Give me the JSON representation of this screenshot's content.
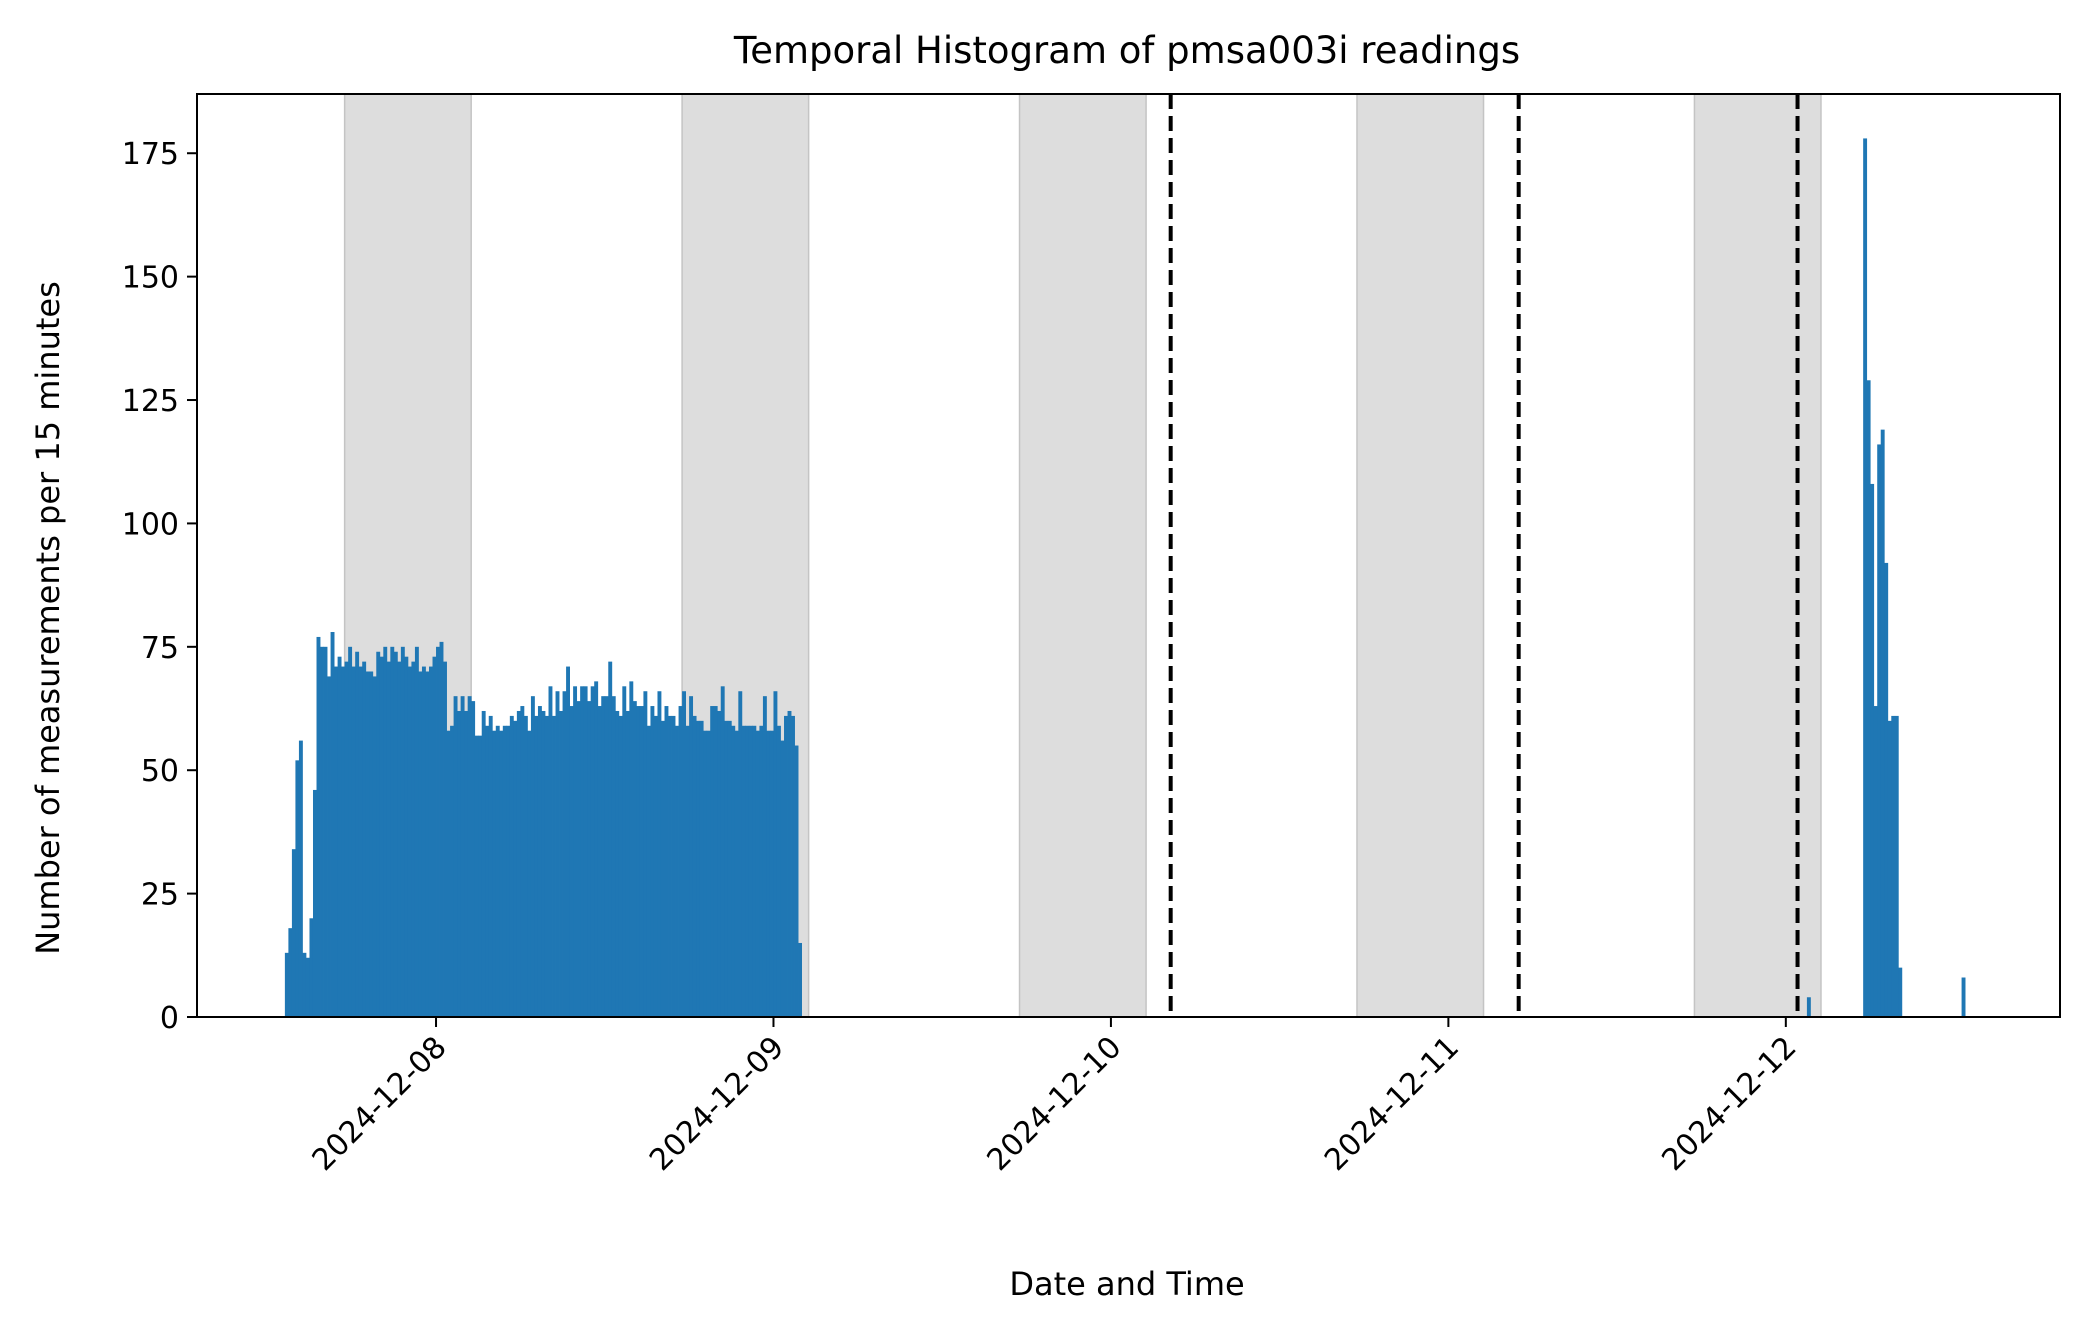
{
  "chart_data": {
    "type": "bar",
    "title": "Temporal Histogram of pmsa003i readings",
    "xlabel": "Date and Time",
    "ylabel": "Number of measurements per 15 minutes",
    "bin_minutes": 15,
    "xlim": [
      "2024-12-07T07:00",
      "2024-12-12T19:30"
    ],
    "ylim": [
      0,
      187
    ],
    "x_ticks": [
      "2024-12-08",
      "2024-12-09",
      "2024-12-10",
      "2024-12-11",
      "2024-12-12"
    ],
    "y_ticks": [
      0,
      25,
      50,
      75,
      100,
      125,
      150,
      175
    ],
    "grid": false,
    "series": [
      {
        "color": "#1f77b4",
        "segments": [
          {
            "start": "2024-12-07T13:15",
            "values": [
              13,
              18,
              34,
              52,
              56,
              13,
              12,
              20,
              46,
              77,
              75,
              75,
              69,
              78,
              71,
              73,
              71,
              72,
              75,
              71,
              74,
              71,
              72,
              70,
              70,
              69,
              74,
              73,
              75,
              72,
              75,
              74,
              72,
              75,
              73,
              71,
              72,
              75,
              70,
              71,
              70,
              71,
              73,
              75,
              76,
              72,
              58,
              59,
              65,
              62,
              65,
              62,
              65,
              64,
              57,
              57,
              62,
              59,
              61,
              58,
              59,
              58,
              59,
              59,
              61,
              60,
              62,
              63,
              61,
              58,
              65,
              61,
              63,
              62,
              61,
              67,
              61,
              66,
              62,
              66,
              71,
              63,
              67,
              64,
              67,
              67,
              64,
              67,
              68,
              63,
              65,
              65,
              72,
              65,
              62,
              61,
              67,
              62,
              68,
              64,
              63,
              63,
              66,
              59,
              63,
              61,
              66,
              60,
              63,
              61,
              61,
              59,
              63,
              66,
              59,
              65,
              61,
              60,
              60,
              58,
              58,
              63,
              63,
              62,
              67,
              60,
              60,
              59,
              58,
              66,
              59,
              59,
              59,
              59,
              58,
              59,
              65,
              58,
              58,
              66,
              59,
              56,
              61,
              62,
              61,
              55,
              15
            ]
          },
          {
            "start": "2024-12-12T01:30",
            "values": [
              4
            ]
          },
          {
            "start": "2024-12-12T05:30",
            "values": [
              178,
              129,
              108,
              63,
              116,
              119,
              92,
              60,
              61,
              61,
              10
            ]
          },
          {
            "start": "2024-12-12T12:30",
            "values": [
              8
            ]
          }
        ]
      }
    ],
    "night_shading": {
      "color": "#dddddd",
      "spans": [
        [
          "2024-12-07T17:30",
          "2024-12-08T02:30"
        ],
        [
          "2024-12-08T17:30",
          "2024-12-09T02:30"
        ],
        [
          "2024-12-09T17:30",
          "2024-12-10T02:30"
        ],
        [
          "2024-12-10T17:30",
          "2024-12-11T02:30"
        ],
        [
          "2024-12-11T17:30",
          "2024-12-12T02:30"
        ]
      ]
    },
    "markers": {
      "style": "dashed",
      "color": "#000000",
      "x": [
        "2024-12-10T04:15",
        "2024-12-11T05:00",
        "2024-12-12T00:50"
      ]
    }
  }
}
